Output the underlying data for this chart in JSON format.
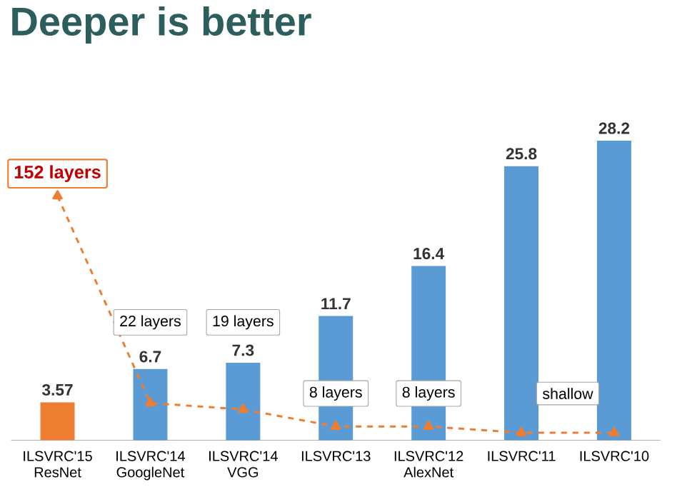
{
  "chart_data": {
    "type": "bar",
    "title": "Deeper is better",
    "categories": [
      "ILSVRC'15 ResNet",
      "ILSVRC'14 GoogleNet",
      "ILSVRC'14 VGG",
      "ILSVRC'13",
      "ILSVRC'12 AlexNet",
      "ILSVRC'11",
      "ILSVRC'10"
    ],
    "series": [
      {
        "colors": [
          "#ed7d31",
          "#5b9bd5",
          "#5b9bd5",
          "#5b9bd5",
          "#5b9bd5",
          "#5b9bd5",
          "#5b9bd5"
        ],
        "values": [
          3.57,
          6.7,
          7.3,
          11.7,
          16.4,
          25.8,
          28.2
        ],
        "value_labels": [
          "3.57",
          "6.7",
          "7.3",
          "11.7",
          "16.4",
          "25.8",
          "28.2"
        ]
      },
      {
        "type": "line",
        "color": "#ed7d31",
        "values": [
          23,
          3.5,
          2.9,
          1.3,
          1.3,
          0.7,
          0.7
        ],
        "line_style": "dashed",
        "marker": "triangle"
      }
    ],
    "annotations": [
      "152 layers",
      "22 layers",
      "19 layers",
      "8 layers",
      "8 layers",
      "shallow"
    ]
  }
}
